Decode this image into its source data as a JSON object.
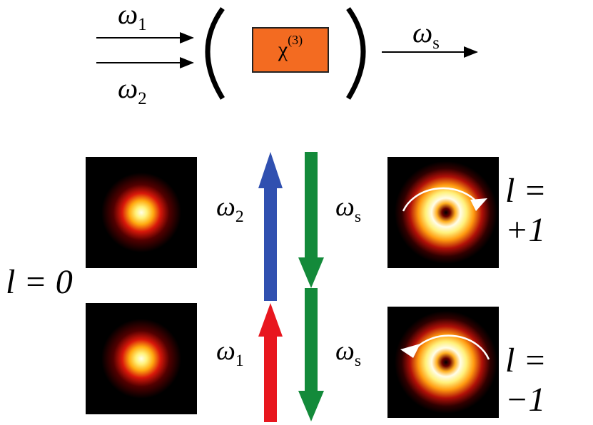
{
  "diagram": {
    "input_beams": [
      {
        "symbol": "ω",
        "subscript": "1"
      },
      {
        "symbol": "ω",
        "subscript": "2"
      }
    ],
    "medium": {
      "symbol": "χ",
      "superscript": "(3)",
      "color": "#f36b21"
    },
    "output_beam": {
      "symbol": "ω",
      "subscript": "s"
    },
    "left_mode": {
      "label": "l = 0"
    },
    "pump_arrows": [
      {
        "symbol": "ω",
        "subscript": "2",
        "color": "#3050b0"
      },
      {
        "symbol": "ω",
        "subscript": "1",
        "color": "#e8161e"
      }
    ],
    "signal_arrows": [
      {
        "symbol": "ω",
        "subscript": "s",
        "color": "#138a3a"
      },
      {
        "symbol": "ω",
        "subscript": "s",
        "color": "#138a3a"
      }
    ],
    "right_modes": [
      {
        "label": "l = +1",
        "rotation": "clockwise"
      },
      {
        "label": "l = −1",
        "rotation": "counter-clockwise"
      }
    ]
  }
}
